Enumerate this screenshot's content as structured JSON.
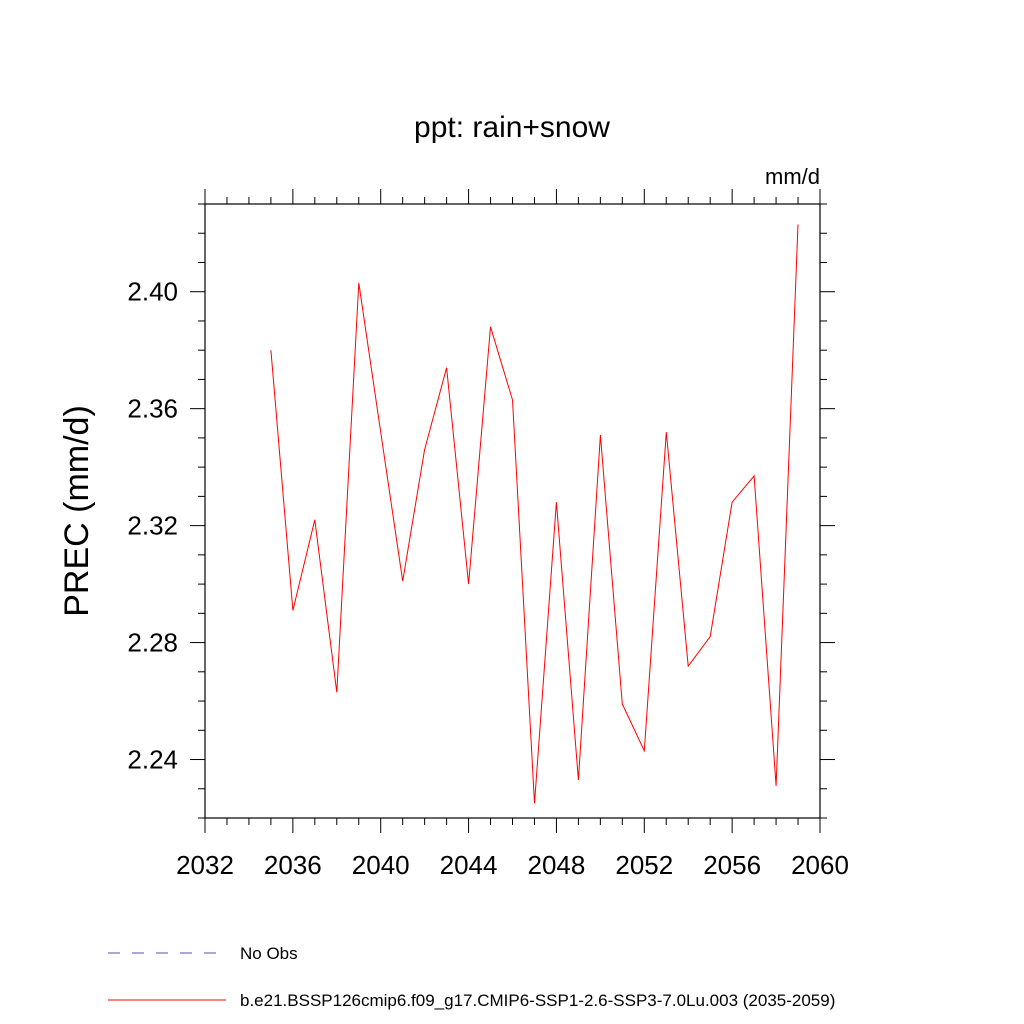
{
  "chart_data": {
    "type": "line",
    "title": "ppt: rain+snow",
    "units_label": "mm/d",
    "ylabel": "PREC  (mm/d)",
    "xlabel": "",
    "xlim": [
      2032,
      2060
    ],
    "ylim": [
      2.22,
      2.43
    ],
    "x_ticks": [
      2032,
      2036,
      2040,
      2044,
      2048,
      2052,
      2056,
      2060
    ],
    "y_ticks": [
      2.24,
      2.28,
      2.32,
      2.36,
      2.4
    ],
    "y_tick_labels": [
      "2.24",
      "2.28",
      "2.32",
      "2.36",
      "2.40"
    ],
    "grid": false,
    "series": [
      {
        "name": "b.e21.BSSP126cmip6.f09_g17.CMIP6-SSP1-2.6-SSP3-7.0Lu.003 (2035-2059)",
        "color": "#ff0000",
        "x": [
          2035,
          2036,
          2037,
          2038,
          2039,
          2040,
          2041,
          2042,
          2043,
          2044,
          2045,
          2046,
          2047,
          2048,
          2049,
          2050,
          2051,
          2052,
          2053,
          2054,
          2055,
          2056,
          2057,
          2058,
          2059
        ],
        "values": [
          2.38,
          2.291,
          2.322,
          2.263,
          2.403,
          2.352,
          2.301,
          2.346,
          2.374,
          2.3,
          2.388,
          2.363,
          2.225,
          2.328,
          2.233,
          2.351,
          2.259,
          2.243,
          2.352,
          2.272,
          2.282,
          2.328,
          2.337,
          2.231,
          2.423
        ]
      }
    ],
    "legend": [
      {
        "label": "No Obs",
        "color": "#5a4fb0",
        "style": "dashed"
      },
      {
        "label": "b.e21.BSSP126cmip6.f09_g17.CMIP6-SSP1-2.6-SSP3-7.0Lu.003 (2035-2059)",
        "color": "#ff0000",
        "style": "solid"
      }
    ]
  }
}
